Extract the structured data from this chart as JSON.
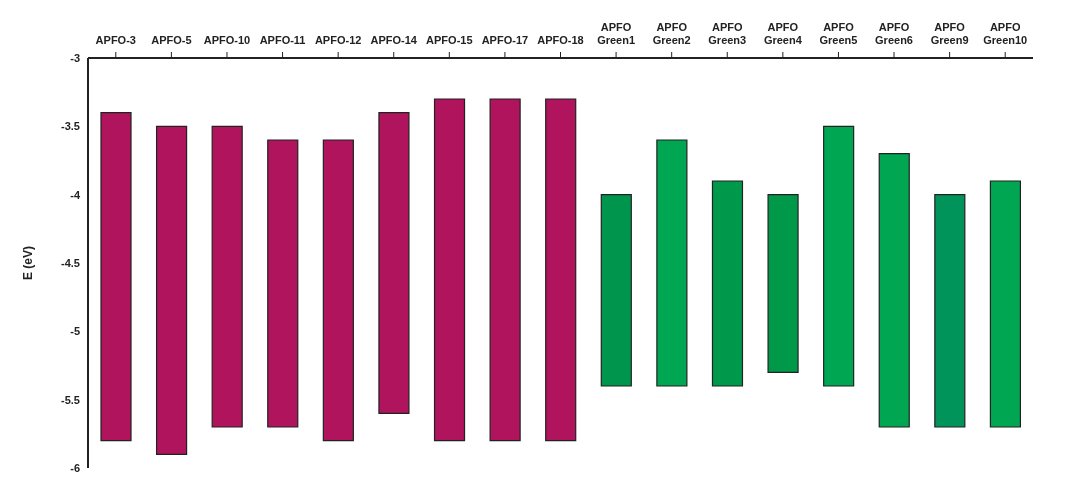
{
  "chart_data": {
    "type": "bar",
    "ylabel": "E (eV)",
    "categories": [
      "APFO-3",
      "APFO-5",
      "APFO-10",
      "APFO-11",
      "APFO-12",
      "APFO-14",
      "APFO-15",
      "APFO-17",
      "APFO-18",
      "APFO Green1",
      "APFO Green2",
      "APFO Green3",
      "APFO Green4",
      "APFO Green5",
      "APFO Green6",
      "APFO Green9",
      "APFO Green10"
    ],
    "base": [
      -5.8,
      -5.9,
      -5.7,
      -5.7,
      -5.8,
      -5.6,
      -5.8,
      -5.8,
      -5.8,
      -5.4,
      -5.4,
      -5.4,
      -5.3,
      -5.4,
      -5.7,
      -5.7,
      -5.7
    ],
    "values": [
      2.4,
      2.4,
      2.2,
      2.1,
      2.2,
      2.2,
      2.5,
      2.5,
      2.5,
      1.4,
      1.8,
      1.5,
      1.3,
      1.9,
      2.0,
      1.7,
      1.8
    ],
    "colors": [
      "#b0145c",
      "#b0145c",
      "#b0145c",
      "#b0145c",
      "#b0145c",
      "#b0145c",
      "#b0145c",
      "#b0145c",
      "#b0145c",
      "#00954c",
      "#00a651",
      "#00994c",
      "#00994a",
      "#00a651",
      "#00a651",
      "#00945a",
      "#00a651"
    ],
    "ylim": [
      -6,
      -3
    ],
    "yticks": [
      -3,
      -3.5,
      -4,
      -4.5,
      -5,
      -5.5,
      -6
    ],
    "grid": false
  }
}
